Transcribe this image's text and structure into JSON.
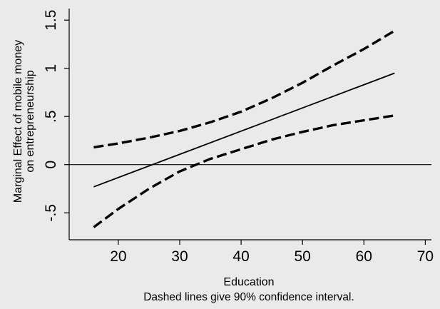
{
  "chart_data": {
    "type": "line",
    "xlabel": "Education",
    "ylabel_lines": [
      "Marginal Effect of mobile money",
      "on entrepreneurship"
    ],
    "note": "Dashed lines give 90% confidence interval.",
    "xlim": [
      12,
      71
    ],
    "ylim": [
      -0.78,
      1.62
    ],
    "xticks": [
      20,
      30,
      40,
      50,
      60,
      70
    ],
    "xtick_labels": [
      "20",
      "30",
      "40",
      "50",
      "60",
      "70"
    ],
    "yticks": [
      -0.5,
      0,
      0.5,
      1,
      1.5
    ],
    "ytick_labels": [
      "-.5",
      "0",
      ".5",
      "1",
      "1.5"
    ],
    "zero_line": 0,
    "grid": false,
    "series": [
      {
        "style": "solid",
        "x": [
          16,
          65
        ],
        "y": [
          -0.23,
          0.95
        ]
      },
      {
        "style": "dashed",
        "x": [
          16,
          20,
          25,
          30,
          35,
          40,
          45,
          50,
          55,
          60,
          65
        ],
        "y": [
          0.18,
          0.22,
          0.28,
          0.35,
          0.44,
          0.55,
          0.69,
          0.85,
          1.03,
          1.2,
          1.39
        ]
      },
      {
        "style": "dashed",
        "x": [
          16,
          20,
          25,
          30,
          35,
          40,
          45,
          50,
          55,
          60,
          65
        ],
        "y": [
          -0.65,
          -0.46,
          -0.25,
          -0.07,
          0.06,
          0.16,
          0.26,
          0.34,
          0.41,
          0.46,
          0.51
        ]
      }
    ]
  }
}
